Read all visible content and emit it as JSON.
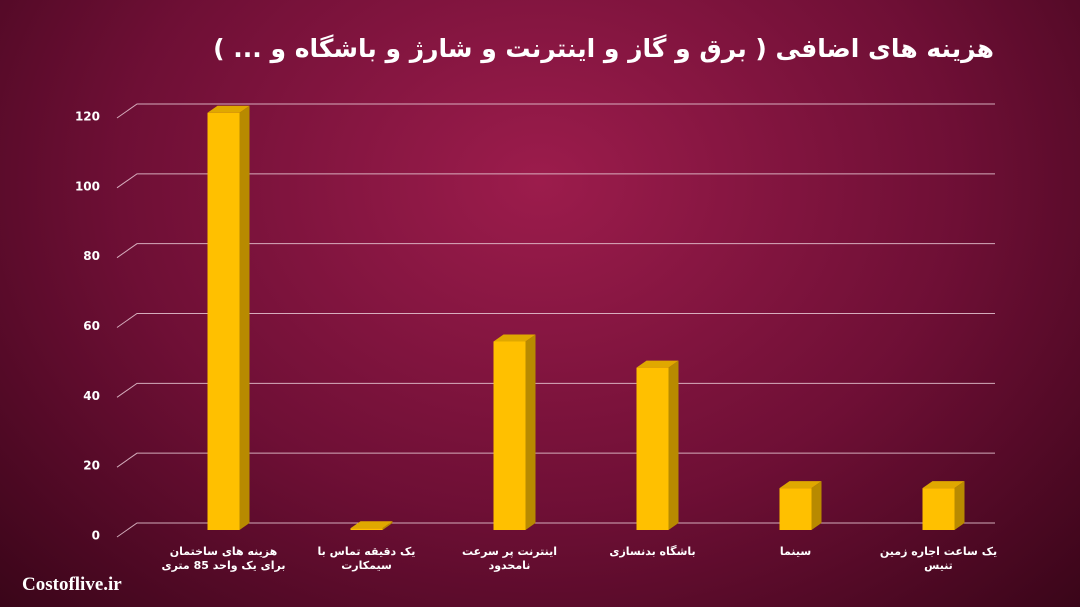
{
  "chart_data": {
    "type": "bar3d",
    "title": "هزینه های اضافی ( برق و گاز و اینترنت و شارژ و باشگاه و ... )",
    "watermark": "Costoflive.ir",
    "categories": [
      "هزینه های ساختمان برای یک واحد 85 متری",
      "یک دقیقه تماس با سیمکارت",
      "اینترنت پر سرعت نامحدود",
      "باشگاه بدنسازی",
      "سینما",
      "یک ساعت اجاره زمین تنیس"
    ],
    "values": [
      119.5,
      0.5,
      54,
      46.5,
      12,
      12
    ],
    "color": "#ffc000",
    "ylim": [
      0,
      120
    ],
    "yticks": [
      0,
      20,
      40,
      60,
      80,
      100,
      120
    ],
    "grid": true
  }
}
